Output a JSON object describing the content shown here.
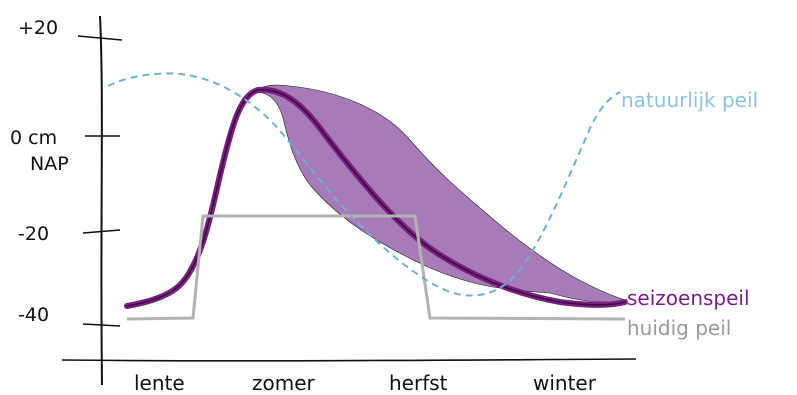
{
  "colors": {
    "natural": "#6fb0d6",
    "seasonal": "#7a1f82",
    "band": "#a67bb8",
    "current": "#b3b3b3",
    "axis": "#111111"
  },
  "y_axis": {
    "ticks": [
      {
        "label": "+20",
        "value": 20
      },
      {
        "label": "0 cm",
        "value": 0,
        "sublabel": "NAP"
      },
      {
        "label": "-20",
        "value": -20
      },
      {
        "label": "-40",
        "value": -40
      }
    ]
  },
  "x_axis": {
    "seasons": [
      "lente",
      "zomer",
      "herfst",
      "winter"
    ]
  },
  "legend": {
    "natural": "natuurlijk peil",
    "seasonal": "seizoenspeil",
    "current": "huidig peil"
  }
}
